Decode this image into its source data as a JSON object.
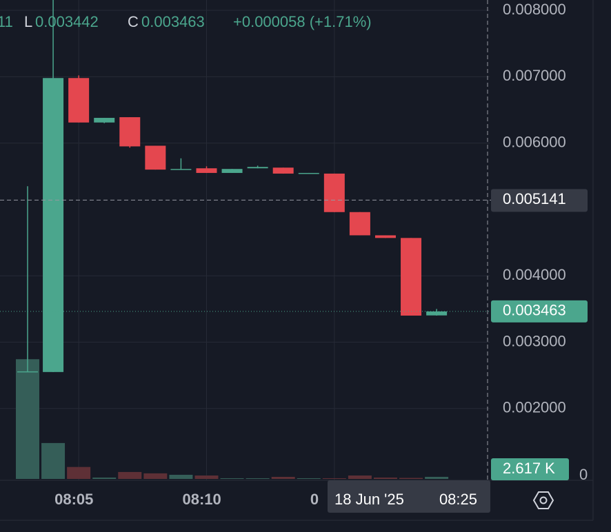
{
  "chart_data": {
    "type": "candlestick",
    "legend": {
      "fragment": "11",
      "low_label": "L",
      "low": "0.003442",
      "close_label": "C",
      "close": "0.003463",
      "change": "+0.000058 (+1.71%)"
    },
    "categories": [
      null,
      null,
      "08:05",
      null,
      null,
      null,
      null,
      "08:10",
      null,
      null,
      null,
      null,
      "0",
      null,
      null,
      null,
      null
    ],
    "open": [
      0.00255,
      0.00255,
      0.00698,
      0.00631,
      0.00639,
      0.00596,
      0.0056,
      0.00562,
      0.00555,
      0.00562,
      0.00563,
      0.00554,
      0.00554,
      0.00496,
      0.00461,
      0.00457,
      0.003403
    ],
    "high": [
      0.00535,
      0.0085,
      0.00702,
      0.00638,
      0.00639,
      0.00596,
      0.00577,
      0.00565,
      0.00561,
      0.00566,
      0.00563,
      0.00555,
      0.00554,
      0.00496,
      0.00461,
      0.00457,
      0.0035
    ],
    "low": [
      0.00255,
      0.00255,
      0.00631,
      0.0063,
      0.00593,
      0.0056,
      0.0056,
      0.00555,
      0.00555,
      0.00562,
      0.00554,
      0.00554,
      0.00496,
      0.00461,
      0.00457,
      0.0034,
      0.0034
    ],
    "close": [
      0.00256,
      0.00698,
      0.00631,
      0.00638,
      0.00595,
      0.0056,
      0.00561,
      0.00555,
      0.00561,
      0.00564,
      0.00554,
      0.00555,
      0.00496,
      0.00461,
      0.00457,
      0.0034,
      0.003463
    ],
    "up_color": "#4ba68d",
    "down_color": "#e4474f",
    "volume": {
      "values": [
        150000,
        45000,
        15000,
        1700,
        8700,
        7000,
        5200,
        4300,
        900,
        900,
        2600,
        900,
        900,
        4300,
        1700,
        1300,
        2617
      ],
      "value_labels": [
        null,
        null,
        null,
        null,
        null,
        null,
        null,
        null,
        null,
        null,
        null,
        null,
        null,
        null,
        null,
        null,
        "2.617 K"
      ],
      "up_color": "#355e58",
      "down_color": "#5e3036"
    },
    "ylim": [
      0.000918,
      0.008156
    ],
    "yticks": [
      {
        "value": 0.008,
        "label": "0.008000"
      },
      {
        "value": 0.007,
        "label": "0.007000"
      },
      {
        "value": 0.006,
        "label": "0.006000"
      },
      {
        "value": 0.004,
        "label": "0.004000"
      },
      {
        "value": 0.003,
        "label": "0.003000"
      },
      {
        "value": 0.002,
        "label": "0.002000"
      }
    ],
    "vlim": [
      0,
      600000
    ],
    "vticks": [
      0
    ],
    "grid": true,
    "crosshair": {
      "price": 0.005141,
      "date": "18 Jun '25",
      "time": "08:25"
    }
  }
}
